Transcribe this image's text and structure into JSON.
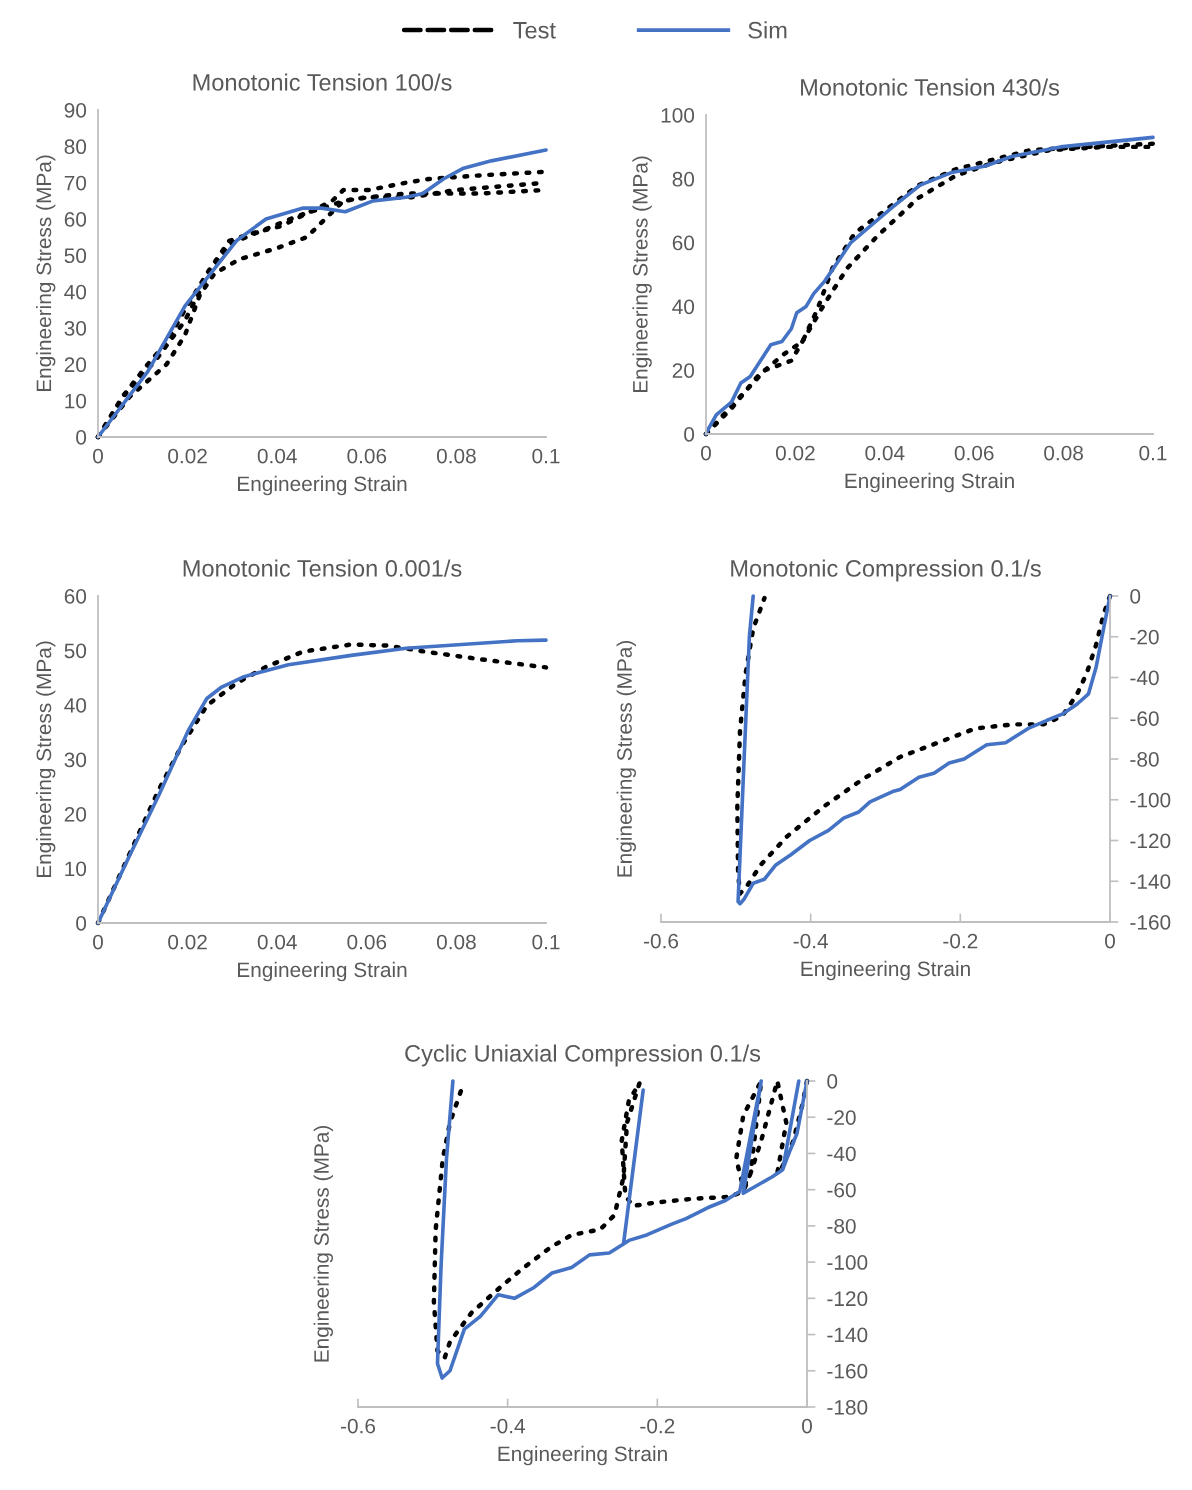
{
  "chart_data": [
    {
      "type": "line",
      "title": "Monotonic Tension 100/s",
      "xlabel": "Engineering Strain",
      "ylabel": "Engineering Stress (MPa)",
      "xlim": [
        0,
        0.1
      ],
      "xticks": [
        0,
        0.02,
        0.04,
        0.06,
        0.08,
        0.1
      ],
      "ylim": [
        0,
        90
      ],
      "yticks": [
        0,
        10,
        20,
        30,
        40,
        50,
        60,
        70,
        80,
        90
      ],
      "grid": false,
      "legend": "top",
      "series": [
        {
          "name": "Test",
          "color": "#000000",
          "line_style": "dotted",
          "x": [
            0,
            0.0054,
            0.0111,
            0.0153,
            0.0194,
            0.0243,
            0.0293,
            0.0342,
            0.0408,
            0.0474,
            0.0523,
            0.0548,
            0.0606,
            0.0688,
            0.0738,
            0.0853,
            0.1
          ],
          "values": [
            0,
            11,
            20,
            26,
            35,
            45,
            54,
            56,
            58,
            62,
            65,
            68,
            68,
            70,
            71,
            72,
            73
          ]
        },
        {
          "color": "#000000",
          "line_style": "dotted",
          "x": [
            0,
            0.007,
            0.0153,
            0.0194,
            0.0227,
            0.026,
            0.0317,
            0.04,
            0.0466,
            0.0507,
            0.0548,
            0.0606,
            0.0688,
            0.0853,
            0.1
          ],
          "values": [
            0,
            11,
            20,
            28,
            39,
            45,
            49,
            52,
            55,
            60,
            65,
            66,
            67,
            67,
            68
          ]
        },
        {
          "color": "#000000",
          "line_style": "dotted",
          "x": [
            0,
            0.0062,
            0.0128,
            0.0194,
            0.0243,
            0.0293,
            0.035,
            0.045,
            0.055,
            0.06,
            0.07,
            0.08,
            0.1
          ],
          "values": [
            0,
            12,
            21,
            32,
            44,
            53,
            56,
            61,
            65,
            66,
            66,
            68,
            70
          ]
        },
        {
          "name": "Sim",
          "color": "#4472c4",
          "line_style": "solid",
          "x": [
            0,
            0.0111,
            0.0194,
            0.0309,
            0.0375,
            0.0458,
            0.0499,
            0.0552,
            0.0614,
            0.0688,
            0.0725,
            0.0771,
            0.0816,
            0.0878,
            0.1
          ],
          "values": [
            0,
            18,
            36,
            54,
            60,
            63,
            63,
            62,
            65,
            66,
            67,
            71,
            74,
            76,
            79
          ]
        }
      ]
    },
    {
      "type": "line",
      "title": "Monotonic Tension 430/s",
      "xlabel": "Engineering Strain",
      "ylabel": "Engineering Stress (MPa)",
      "xlim": [
        0,
        0.1
      ],
      "xticks": [
        0,
        0.02,
        0.04,
        0.06,
        0.08,
        0.1
      ],
      "ylim": [
        0,
        100
      ],
      "yticks": [
        0,
        20,
        40,
        60,
        80,
        100
      ],
      "grid": false,
      "series": [
        {
          "color": "#000000",
          "line_style": "dotted",
          "x": [
            0,
            0.0057,
            0.0115,
            0.0174,
            0.0216,
            0.0249,
            0.0283,
            0.0333,
            0.04,
            0.0475,
            0.0559,
            0.0642,
            0.0726,
            0.085,
            0.1
          ],
          "values": [
            0,
            8,
            18,
            25,
            29,
            39,
            52,
            63,
            70,
            78,
            83,
            86,
            89,
            90,
            91
          ]
        },
        {
          "color": "#000000",
          "line_style": "dotted",
          "x": [
            0,
            0.0065,
            0.0132,
            0.0191,
            0.0224,
            0.0266,
            0.0316,
            0.0383,
            0.0475,
            0.0559,
            0.0642,
            0.0768,
            0.0894,
            0.1
          ],
          "values": [
            0,
            10,
            20,
            23,
            31,
            41,
            52,
            62,
            74,
            81,
            85,
            89,
            90,
            90
          ]
        },
        {
          "color": "#4472c4",
          "line_style": "solid",
          "x": [
            0,
            0.0007,
            0.0023,
            0.0057,
            0.0078,
            0.0099,
            0.0145,
            0.017,
            0.0191,
            0.0203,
            0.0224,
            0.0241,
            0.0266,
            0.0324,
            0.0366,
            0.0416,
            0.0479,
            0.055,
            0.0625,
            0.0684,
            0.0793,
            0.1
          ],
          "values": [
            0,
            2,
            6,
            10,
            16,
            18,
            28,
            29,
            33,
            38,
            40,
            44,
            48,
            60,
            65,
            71,
            78,
            82,
            84,
            87,
            90,
            93
          ]
        }
      ]
    },
    {
      "type": "line",
      "title": "Monotonic Tension 0.001/s",
      "xlabel": "Engineering Strain",
      "ylabel": "Engineering Stress (MPa)",
      "xlim": [
        0,
        0.1
      ],
      "xticks": [
        0,
        0.02,
        0.04,
        0.06,
        0.08,
        0.1
      ],
      "ylim": [
        0,
        60
      ],
      "yticks": [
        0,
        10,
        20,
        30,
        40,
        50,
        60
      ],
      "grid": false,
      "series": [
        {
          "color": "#000000",
          "line_style": "dotted",
          "x": [
            0,
            0.007,
            0.0136,
            0.0186,
            0.0243,
            0.0309,
            0.0375,
            0.0458,
            0.0565,
            0.0647,
            0.0729,
            0.0853,
            0.1
          ],
          "values": [
            0,
            12.6,
            24.5,
            32.4,
            39.9,
            44,
            47,
            49.8,
            51.1,
            50.9,
            49.8,
            48.4,
            46.9
          ]
        },
        {
          "color": "#4472c4",
          "line_style": "solid",
          "x": [
            0,
            0.007,
            0.0136,
            0.0202,
            0.0243,
            0.0276,
            0.0326,
            0.0425,
            0.0565,
            0.0688,
            0.0812,
            0.0936,
            0.1
          ],
          "values": [
            0,
            12.3,
            23.5,
            35.4,
            41.2,
            43.3,
            45.2,
            47.4,
            49.1,
            50.4,
            51.1,
            51.8,
            51.9
          ]
        }
      ]
    },
    {
      "type": "line",
      "title": "Monotonic Compression 0.1/s",
      "xlabel": "Engineering Strain",
      "ylabel": "Engineering Stress (MPa)",
      "xlim": [
        -0.6,
        0
      ],
      "xticks": [
        {
          "value": -0.6,
          "label": "-0.6"
        },
        {
          "value": -0.4,
          "label": "-0.4"
        },
        {
          "value": -0.2,
          "label": "-0.2"
        },
        0
      ],
      "ylim": [
        -160,
        0
      ],
      "yticks": [
        {
          "value": -160,
          "label": "-160"
        },
        {
          "value": -140,
          "label": "-140"
        },
        {
          "value": -120,
          "label": "-120"
        },
        {
          "value": -100,
          "label": "-100"
        },
        {
          "value": -80,
          "label": "-80"
        },
        {
          "value": -60,
          "label": "-60"
        },
        {
          "value": -40,
          "label": "-40"
        },
        {
          "value": -20,
          "label": "-20"
        },
        0
      ],
      "grid": false,
      "series": [
        {
          "color": "#000000",
          "line_style": "dotted",
          "x": [
            0,
            -0.0086,
            -0.0186,
            -0.0312,
            -0.0438,
            -0.0639,
            -0.0891,
            -0.1294,
            -0.1798,
            -0.2301,
            -0.2805,
            -0.3308,
            -0.3812,
            -0.4316,
            -0.4668,
            -0.4844,
            -0.4944,
            -0.497,
            -0.498,
            -0.4944,
            -0.4869,
            -0.4768,
            -0.4617
          ],
          "values": [
            0,
            -9,
            -24,
            -38,
            -48,
            -59,
            -63,
            -63,
            -65,
            -72,
            -79,
            -90,
            -103,
            -118,
            -132,
            -142,
            -146,
            -136,
            -103,
            -66,
            -38,
            -16,
            -1
          ]
        },
        {
          "color": "#4472c4",
          "line_style": "solid",
          "x": [
            0,
            -0.0086,
            -0.0186,
            -0.0287,
            -0.0438,
            -0.0639,
            -0.0841,
            -0.1093,
            -0.1395,
            -0.1647,
            -0.1949,
            -0.215,
            -0.2352,
            -0.2553,
            -0.2805,
            -0.2905,
            -0.3207,
            -0.3358,
            -0.356,
            -0.3761,
            -0.4013,
            -0.4265,
            -0.4466,
            -0.4617,
            -0.4768,
            -0.4894,
            -0.4944,
            -0.497,
            -0.4894,
            -0.4819,
            -0.4768
          ],
          "values": [
            0,
            -16,
            -35,
            -48,
            -53,
            -58,
            -61,
            -65,
            -72,
            -73,
            -80,
            -82,
            -87,
            -89,
            -95,
            -96,
            -101,
            -106,
            -109,
            -115,
            -120,
            -127,
            -132,
            -139,
            -141,
            -149,
            -151,
            -150,
            -84,
            -20,
            0
          ]
        }
      ]
    },
    {
      "type": "line",
      "title": "Cyclic Uniaxial Compression 0.1/s",
      "xlabel": "Engineering Strain",
      "ylabel": "Engineering Stress (MPa)",
      "xlim": [
        -0.6,
        0
      ],
      "xticks": [
        {
          "value": -0.6,
          "label": "-0.6"
        },
        {
          "value": -0.4,
          "label": "-0.4"
        },
        {
          "value": -0.2,
          "label": "-0.2"
        },
        0
      ],
      "ylim": [
        -180,
        0
      ],
      "yticks": [
        {
          "value": -180,
          "label": "-180"
        },
        {
          "value": -160,
          "label": "-160"
        },
        {
          "value": -140,
          "label": "-140"
        },
        {
          "value": -120,
          "label": "-120"
        },
        {
          "value": -100,
          "label": "-100"
        },
        {
          "value": -80,
          "label": "-80"
        },
        {
          "value": -60,
          "label": "-60"
        },
        {
          "value": -40,
          "label": "-40"
        },
        {
          "value": -20,
          "label": "-20"
        },
        0
      ],
      "grid": false,
      "series": [
        {
          "color": "#000000",
          "line_style": "dotted",
          "x": [
            0,
            -0.0062,
            -0.0182,
            -0.0325,
            -0.0397,
            -0.0277,
            -0.0397,
            -0.0612,
            -0.0755,
            -0.0851,
            -0.0946,
            -0.0851,
            -0.0612,
            -0.0755,
            -0.0851,
            -0.1042,
            -0.152,
            -0.1998,
            -0.2333,
            -0.2428,
            -0.2476,
            -0.2381,
            -0.2237,
            -0.2405,
            -0.2452,
            -0.2572,
            -0.2763,
            -0.3145,
            -0.3432,
            -0.3815,
            -0.4101,
            -0.4484,
            -0.4771,
            -0.4843,
            -0.4938,
            -0.4986,
            -0.4962,
            -0.4867,
            -0.4771,
            -0.4604
          ],
          "values": [
            0,
            -13,
            -33,
            -47,
            -51,
            -23,
            0,
            -33,
            -51,
            -59,
            -43,
            -19,
            0,
            -51,
            -61,
            -64,
            -65,
            -67,
            -69,
            -63,
            -33,
            -11,
            -1,
            -23,
            -53,
            -74,
            -82,
            -85,
            -92,
            -104,
            -114,
            -128,
            -144,
            -153,
            -149,
            -122,
            -82,
            -43,
            -23,
            -3
          ]
        },
        {
          "color": "#4472c4",
          "line_style": "solid",
          "x": [
            0,
            -0.0134,
            -0.0253,
            -0.0325,
            -0.011,
            -0.0325,
            -0.0468,
            -0.0851,
            -0.0612,
            -0.0899,
            -0.109,
            -0.1329,
            -0.1616,
            -0.1807,
            -0.2141,
            -0.238,
            -0.2452,
            -0.2189,
            -0.2452,
            -0.2643,
            -0.2906,
            -0.3145,
            -0.3408,
            -0.3647,
            -0.391,
            -0.4126,
            -0.4365,
            -0.4579,
            -0.4771,
            -0.4876,
            -0.4938,
            -0.489,
            -0.4818,
            -0.4732
          ],
          "values": [
            0,
            -29,
            -41,
            -49,
            0,
            -49,
            -53,
            -62,
            0,
            -61,
            -66,
            -70,
            -76,
            -79,
            -85,
            -88,
            -90,
            -5,
            -90,
            -95,
            -96,
            -103,
            -106,
            -114,
            -120,
            -118,
            -130,
            -137,
            -160,
            -164,
            -156,
            -102,
            -43,
            0
          ]
        }
      ]
    }
  ]
}
